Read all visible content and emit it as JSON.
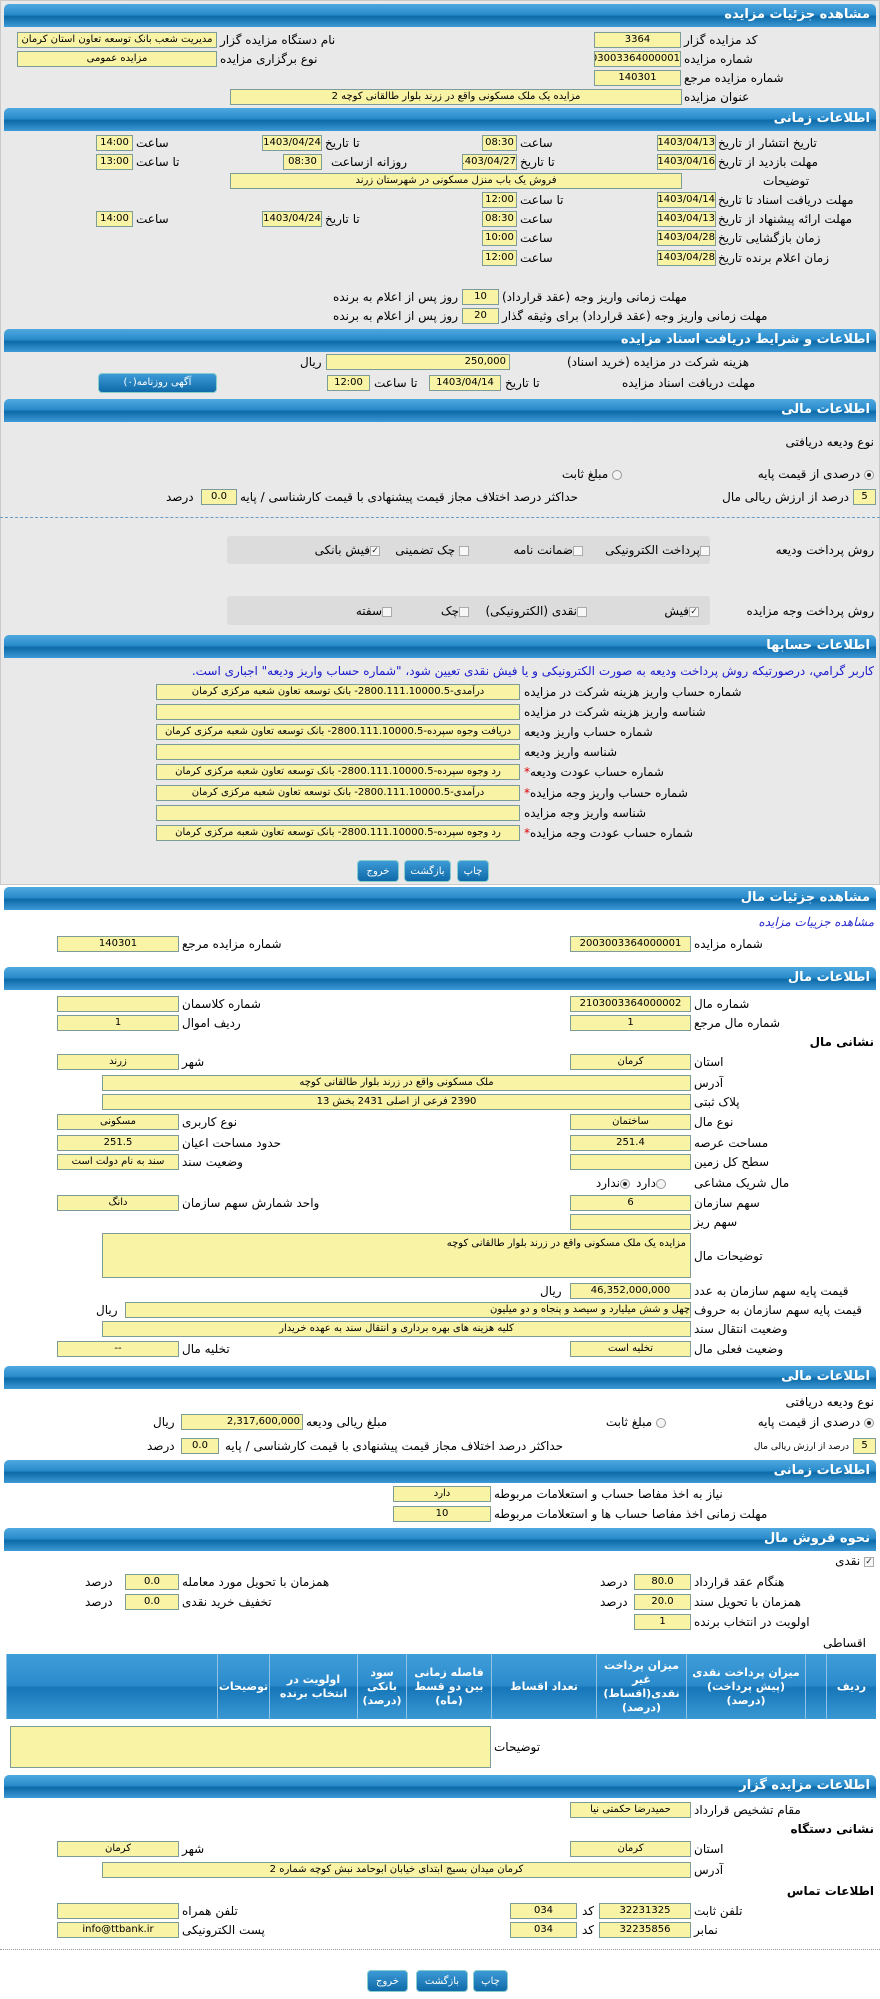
{
  "colors": {
    "header_blue": "#1a7ab8",
    "field_yellow": "#f9f3a6",
    "note_blue": "#1a1acc",
    "required_red": "#dd0000"
  },
  "s1": {
    "title": "مشاهده جزئیات مزایده",
    "code_label": "کد مزایده گزار",
    "code": "3364",
    "number_label": "شماره مزایده",
    "number": "2003003364000001",
    "ref_label": "شماره مزایده مرجع",
    "ref": "140301",
    "subject_label": "عنوان مزایده",
    "subject": "مزایده یک ملک مسکونی واقع در زرند بلوار طالقانی کوچه 2",
    "org_label": "نام دستگاه مزایده گزار",
    "org": "مدیریت شعب بانک توسعه تعاون استان کرمان",
    "type_label": "نوع برگزاری مزایده",
    "type": "مزایده عمومی"
  },
  "s2": {
    "title": "اطلاعات زمانی",
    "publish_label": "تاریخ انتشار از تاریخ",
    "publish_from": "1403/04/13",
    "publish_time_label": "ساعت",
    "publish_time": "08:30",
    "publish_to_label": "تا تاریخ",
    "publish_to": "1403/04/24",
    "publish_to_time_label": "ساعت",
    "publish_to_time": "14:00",
    "visit_label": "مهلت بازدید از تاریخ",
    "visit_from": "1403/04/16",
    "visit_to_label": "تا تاریخ",
    "visit_to": "1403/04/27",
    "daily_label": "روزانه ازساعت",
    "daily_from": "08:30",
    "daily_to_label": "تا ساعت",
    "daily_to": "13:00",
    "desc_label": "توضیحات",
    "desc": "فروش یک باب منزل مسکونی در شهرستان  زرند",
    "docs_label": "مهلت دریافت اسناد  تا تاریخ",
    "docs_date": "1403/04/14",
    "docs_time_label": "تا ساعت",
    "docs_time": "12:00",
    "offer_label": "مهلت ارائه پیشنهاد از تاریخ",
    "offer_from": "1403/04/13",
    "offer_time_label": "ساعت",
    "offer_time": "08:30",
    "offer_to_label": "تا تاریخ",
    "offer_to": "1403/04/24",
    "offer_to_time_label": "ساعت",
    "offer_to_time": "14:00",
    "open_label": "زمان بازگشایی  تاریخ",
    "open_date": "1403/04/28",
    "open_time_label": "ساعت",
    "open_time": "10:00",
    "winner_label": "زمان اعلام برنده  تاریخ",
    "winner_date": "1403/04/28",
    "winner_time_label": "ساعت",
    "winner_time": "12:00",
    "pay1_label": "مهلت زمانی واریز وجه (عقد قرارداد)",
    "pay1": "10",
    "pay1_suffix": "روز پس از اعلام به برنده",
    "pay2_label": "مهلت زمانی واریز وجه (عقد قرارداد) برای وثیقه گذار",
    "pay2": "20",
    "pay2_suffix": "روز پس از اعلام به برنده"
  },
  "s3": {
    "title": "اطلاعات و شرایط دریافت اسناد مزایده",
    "fee_label": "هزینه شرکت در مزایده (خرید اسناد)",
    "fee": "250,000",
    "fee_unit": "ریال",
    "deadline_label": "مهلت دریافت اسناد مزایده",
    "to_date_label": "تا تاریخ",
    "to_date": "1403/04/14",
    "to_time_label": "تا ساعت",
    "to_time": "12:00",
    "ad_button": "آگهی روزنامه(۰)"
  },
  "s4": {
    "title": "اطلاعات مالی",
    "deposit_type_label": "نوع ودیعه دریافتی",
    "opt_percent": "درصدی از قیمت پایه",
    "opt_fixed": "مبلغ ثابت",
    "selected": "percent",
    "percent": "5",
    "percent_suffix": "درصد از ارزش ریالی مال",
    "max_diff_label": "حداکثر درصد اختلاف مجاز قیمت پیشنهادی با قیمت کارشناسی / پایه",
    "max_diff": "0.0",
    "max_diff_unit": "درصد",
    "deposit_method_label": "روش پرداخت ودیعه",
    "deposit_methods": [
      {
        "label": "پرداخت الکترونیکی",
        "checked": false
      },
      {
        "label": "ضمانت نامه",
        "checked": false
      },
      {
        "label": "چک تضمینی",
        "checked": false
      },
      {
        "label": "فیش بانکی",
        "checked": true
      }
    ],
    "payment_method_label": "روش پرداخت وجه مزایده",
    "payment_methods": [
      {
        "label": "فیش",
        "checked": true
      },
      {
        "label": "نقدی (الکترونیکی)",
        "checked": false
      },
      {
        "label": "چک",
        "checked": false
      },
      {
        "label": "سفته",
        "checked": false
      }
    ]
  },
  "s5": {
    "title": "اطلاعات حسابها",
    "note": "کاربر گرامي، درصورتیکه روش پرداخت ودیعه به صورت الکترونیکی و یا فیش نقدی تعیین شود، \"شماره حساب واریز ودیعه\" اجباری است.",
    "rows": [
      {
        "label": "شماره حساب واریز هزینه شرکت در مزایده",
        "value": "درآمدی-2800.111.10000.5- بانک توسعه تعاون شعبه مرکزی کرمان",
        "required": false
      },
      {
        "label": "شناسه واریز هزینه شرکت در مزایده",
        "value": "",
        "required": false
      },
      {
        "label": "شماره حساب واریز ودیعه",
        "value": "دریافت وجوه سپرده-2800.111.10000.5- بانک توسعه تعاون شعبه مرکزی کرمان",
        "required": false
      },
      {
        "label": "شناسه واریز ودیعه",
        "value": "",
        "required": false
      },
      {
        "label": "شماره حساب عودت ودیعه",
        "value": "رد وجوه سپرده-2800.111.10000.5- بانک توسعه تعاون شعبه مرکزی کرمان",
        "required": true
      },
      {
        "label": "شماره حساب واریز وجه مزایده",
        "value": "درآمدی-2800.111.10000.5- بانک توسعه تعاون شعبه مرکزی کرمان",
        "required": true
      },
      {
        "label": "شناسه واریز وجه مزایده",
        "value": "",
        "required": false
      },
      {
        "label": "شماره حساب عودت وجه مزایده",
        "value": "رد وجوه سپرده-2800.111.10000.5- بانک توسعه تعاون شعبه مرکزی کرمان",
        "required": true
      }
    ]
  },
  "buttons": {
    "print": "چاپ",
    "back": "بازگشت",
    "exit": "خروج"
  },
  "p2": {
    "title": "مشاهده جزئیات مال",
    "link": "مشاهده جزییات مزایده",
    "number_label": "شماره مزایده",
    "number": "2003003364000001",
    "ref_label": "شماره مزایده مرجع",
    "ref": "140301"
  },
  "prop": {
    "title": "اطلاعات مال",
    "num_label": "شماره مال",
    "num": "2103003364000002",
    "class_label": "شماره کلاسمان",
    "class": "",
    "refnum_label": "شماره مال مرجع",
    "refnum": "1",
    "row_label": "ردیف اموال",
    "row": "1",
    "address_heading": "نشانی مال",
    "province_label": "استان",
    "province": "کرمان",
    "city_label": "شهر",
    "city": "زرند",
    "address_label": "آدرس",
    "address": "ملک مسکونی واقع در زرند بلوار طالقانی کوچه",
    "plak_label": "پلاک ثبتی",
    "plak": "2390 فرعی از اصلی 2431 بخش 13",
    "kind_label": "نوع مال",
    "kind": "ساختمان",
    "usage_label": "نوع کاربری",
    "usage": "مسکونی",
    "land_label": "مساحت عرصه",
    "land": "251.4",
    "building_label": "حدود مساحت اعیان",
    "building": "251.5",
    "total_label": "سطح کل زمین",
    "total": "",
    "deed_label": "وضعیت سند",
    "deed": "سند به نام دولت است",
    "shared_label": "مال شریک مشاعی",
    "shared_yes": "دارد",
    "shared_no": "ندارد",
    "shared": "no",
    "share_label": "سهم سازمان",
    "share": "6",
    "unit_label": "واحد شمارش سهم سازمان",
    "unit": "دانگ",
    "small_label": "سهم ریز",
    "small": "",
    "desc_label": "توضیحات مال",
    "desc": "مزایده یک ملک مسکونی واقع در زرند بلوار طالقانی کوچه",
    "price_label": "قیمت پایه سهم سازمان به عدد",
    "price": "46,352,000,000",
    "price_unit": "ریال",
    "words_label": "قیمت پایه سهم سازمان به حروف",
    "words": "چهل و شش میلیارد و سیصد و پنجاه و دو میلیون",
    "words_unit": "ریال",
    "transfer_label": "وضعیت انتقال سند",
    "transfer": "کلیه هزینه های بهره برداری و انتقال سند به عهده خریدار",
    "status_label": "وضعیت فعلی مال",
    "status": "تخلیه است",
    "evac_label": "تخلیه مال",
    "evac": "--"
  },
  "fin2": {
    "title": "اطلاعات مالی",
    "deposit_type_label": "نوع ودیعه دریافتی",
    "opt_percent": "درصدی از قیمت پایه",
    "opt_fixed": "مبلغ ثابت",
    "amount_label": "مبلغ ریالی ودیعه",
    "amount": "2,317,600,000",
    "amount_unit": "ریال",
    "percent": "5",
    "percent_suffix": "درصد از ارزش ریالی مال",
    "max_diff_label": "حداکثر درصد اختلاف مجاز قیمت پیشنهادی با قیمت کارشناسی / پایه",
    "max_diff": "0.0",
    "max_diff_unit": "درصد"
  },
  "time2": {
    "title": "اطلاعات زمانی",
    "need_label": "نیاز به اخذ مفاصا حساب و استعلامات مربوطه",
    "need": "دارد",
    "deadline_label": "مهلت زمانی اخذ مفاصا حساب ها و استعلامات مربوطه",
    "deadline": "10"
  },
  "sale": {
    "title": "نحوه فروش مال",
    "cash_label": "نقدی",
    "cash_checked": true,
    "contract_label": "هنگام عقد قرارداد",
    "contract": "80.0",
    "deed_label": "همزمان با تحویل سند",
    "deed": "20.0",
    "priority_label": "اولویت در انتخاب برنده",
    "priority": "1",
    "delivery_label": "همزمان با تحویل مورد معامله",
    "delivery": "0.0",
    "discount_label": "تخفیف خرید نقدی",
    "discount": "0.0",
    "unit": "درصد",
    "installment_label": "اقساطی",
    "columns": [
      "ردیف",
      "",
      "میزان پرداخت نقدی (پیش پرداخت) (درصد)",
      "میزان پرداخت غیر نقدی(اقساط) (درصد)",
      "تعداد اقساط",
      "فاصله زمانی بین دو قسط (ماه)",
      "سود بانکی (درصد)",
      "اولویت در انتخاب برنده",
      "توضیحات",
      ""
    ],
    "desc_label": "توضیحات",
    "desc": ""
  },
  "org": {
    "title": "اطلاعات مزایده گزار",
    "authority_label": "مقام تشخیص قرارداد",
    "authority": "حمیدرضا حکمتی نیا",
    "address_heading": "نشانی دستگاه",
    "province_label": "استان",
    "province": "کرمان",
    "city_label": "شهر",
    "city": "کرمان",
    "address_label": "آدرس",
    "address": "کرمان میدان بسیج ابتدای خیابان ابوحامد نبش کوچه شماره 2",
    "contact_heading": "اطلاعات تماس",
    "phone_label": "تلفن ثابت",
    "phone": "32231325",
    "code_label": "کد",
    "phone_code": "034",
    "mobile_label": "تلفن همراه",
    "mobile": "",
    "fax_label": "نمابر",
    "fax": "32235856",
    "fax_code": "034",
    "email_label": "پست الکترونیکی",
    "email": "info@ttbank.ir"
  }
}
